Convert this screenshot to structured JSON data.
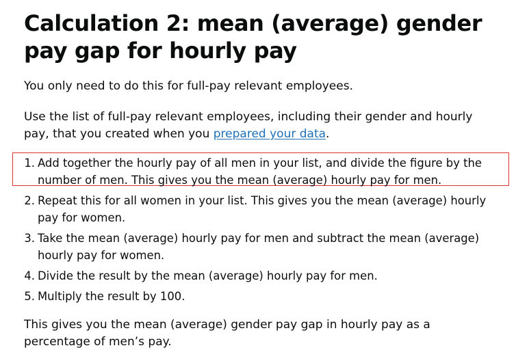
{
  "heading": "Calculation 2: mean (average) gender pay gap for hourly pay",
  "intro": "You only need to do this for full-pay relevant employees.",
  "instruction": {
    "before": "Use the list of full-pay relevant employees, including their gender and hourly pay, that you created when you ",
    "link": "prepared your data",
    "after": "."
  },
  "steps": [
    {
      "num": "1.",
      "text": "Add together the hourly pay of all men in your list, and divide the figure by the number of men. This gives you the mean (average) hourly pay for men."
    },
    {
      "num": "2.",
      "text": "Repeat this for all women in your list. This gives you the mean (average) hourly pay for women."
    },
    {
      "num": "3.",
      "text": "Take the mean (average) hourly pay for men and subtract the mean (average) hourly pay for women."
    },
    {
      "num": "4.",
      "text": "Divide the result by the mean (average) hourly pay for men."
    },
    {
      "num": "5.",
      "text": "Multiply the result by 100."
    }
  ],
  "conclusion": "This gives you the mean (average) gender pay gap in hourly pay as a percentage of men’s pay.",
  "colors": {
    "text": "#0b0c0c",
    "link": "#1d70b8",
    "highlight": "#d9342b"
  }
}
